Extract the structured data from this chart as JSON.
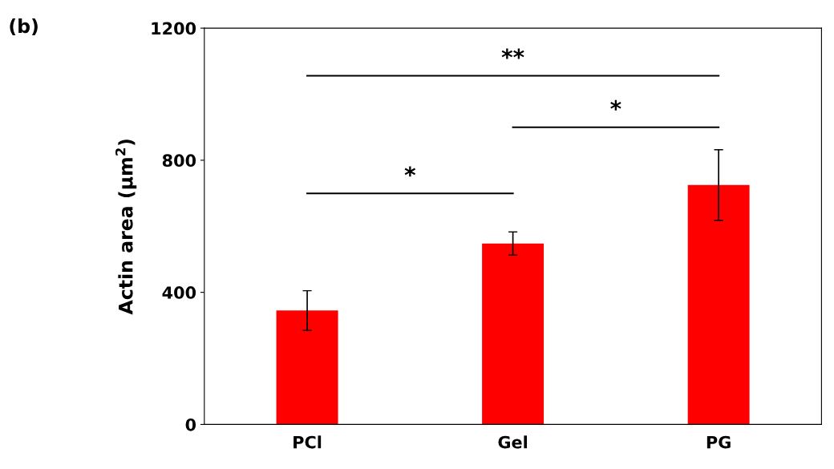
{
  "chart_data": {
    "type": "bar",
    "title": "(b)",
    "ylabel": "Actin area (μm$^{2}$)",
    "categories": [
      "PCl",
      "Gel",
      "PG"
    ],
    "series": [
      {
        "color": "#ff0000",
        "values": [
          345,
          548,
          725
        ],
        "errors": [
          60,
          35,
          107
        ]
      }
    ],
    "ylim": [
      0,
      1200
    ],
    "yticks": [
      0,
      400,
      800,
      1200
    ],
    "grid": false,
    "legend": false,
    "annotations": [
      "*",
      "*",
      "**"
    ]
  }
}
